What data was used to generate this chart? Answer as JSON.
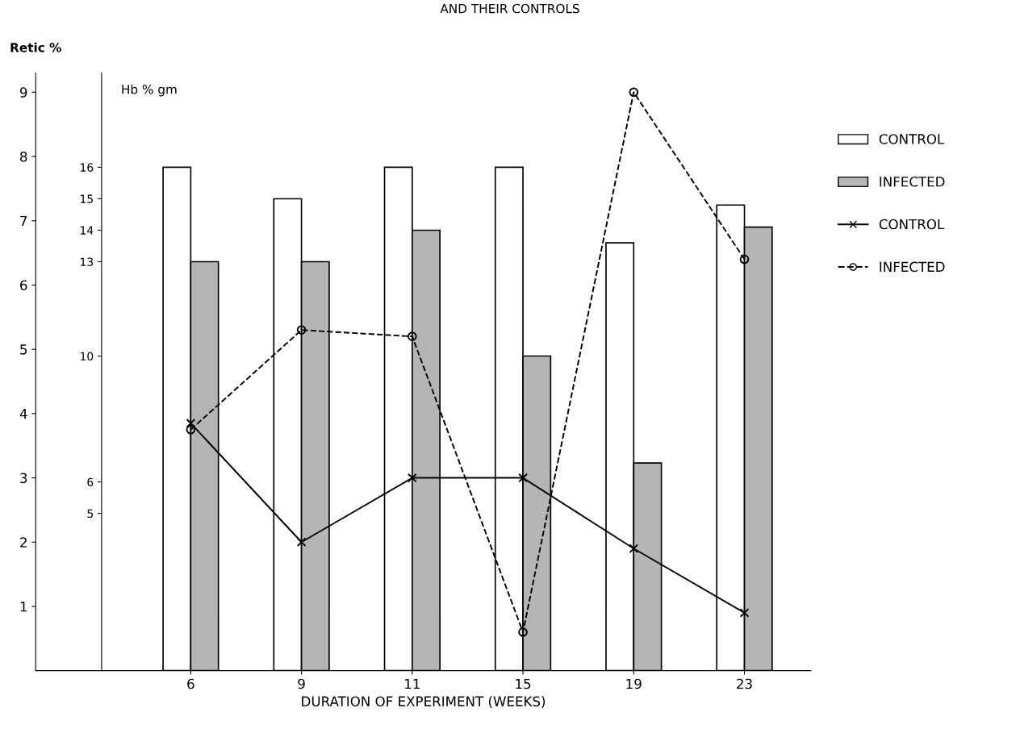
{
  "chart_data": {
    "type": "bar",
    "title": "AND THEIR CONTROLS",
    "xlabel": "DURATION OF EXPERIMENT (WEEKS)",
    "ylabel": "Retic %",
    "y2label": "Hb % gm",
    "categories": [
      "6",
      "9",
      "11",
      "15",
      "19",
      "23"
    ],
    "series": [
      {
        "name": "CONTROL",
        "axis": "y2",
        "color": "#ffffff",
        "values": [
          16,
          15,
          16,
          16,
          13.6,
          14.8
        ]
      },
      {
        "name": "INFECTED",
        "axis": "y2",
        "color": "#b5b5b5",
        "values": [
          13,
          13,
          14,
          10,
          6.6,
          14.1
        ]
      },
      {
        "name": "CONTROL",
        "type": "line",
        "color": "#000000",
        "marker": "cross",
        "line_style": "solid",
        "values": [
          3.85,
          2.0,
          3.0,
          3.0,
          1.9,
          0.9
        ]
      },
      {
        "name": "INFECTED",
        "type": "line",
        "color": "#000000",
        "marker": "circle",
        "line_style": "dashed",
        "values": [
          3.75,
          5.3,
          5.2,
          0.6,
          9.0,
          6.4
        ]
      }
    ],
    "ylim": [
      0,
      9.3
    ],
    "yticks": [
      1,
      2,
      3,
      4,
      5,
      6,
      7,
      8,
      9
    ],
    "y2lim": [
      0,
      19
    ],
    "y2ticks": [
      5,
      6,
      10,
      13,
      14,
      15,
      16
    ],
    "grid": false,
    "legend": "right"
  }
}
